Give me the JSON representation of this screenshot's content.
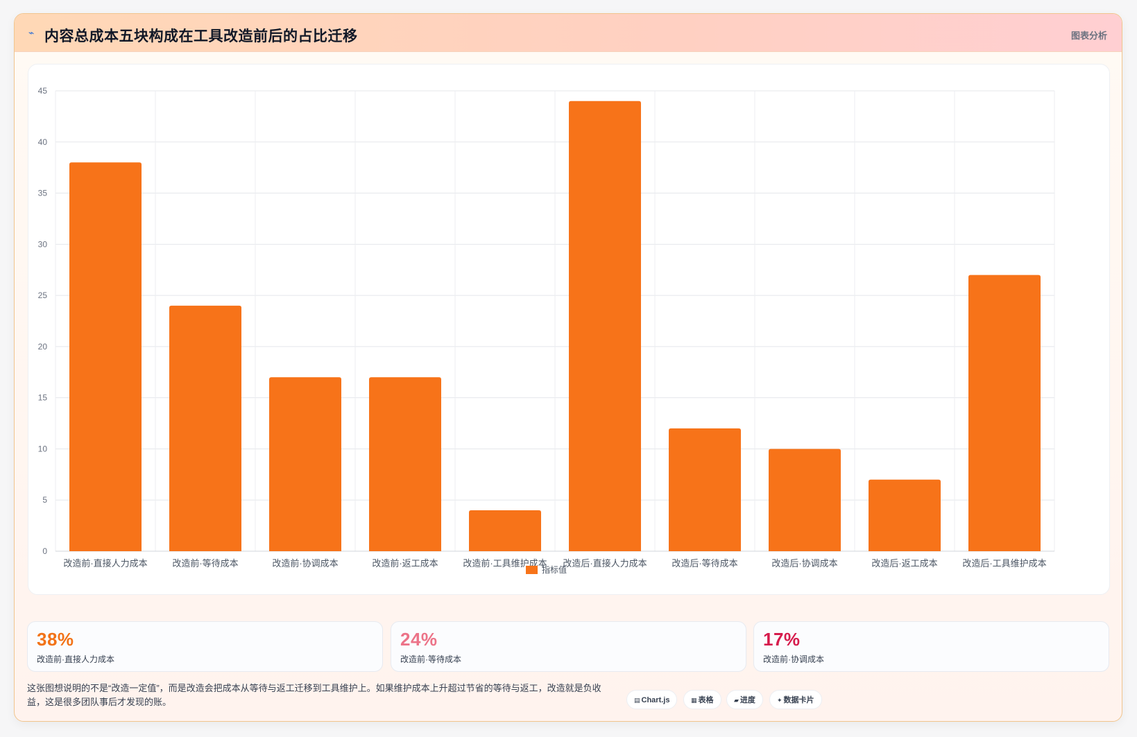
{
  "header": {
    "title": "内容总成本五块构成在工具改造前后的占比迁移",
    "badge": "图表分析"
  },
  "colors": {
    "bar": "#f77319",
    "kpi": [
      "#f27318",
      "#ec7388",
      "#d61b4c"
    ]
  },
  "chart_data": {
    "type": "bar",
    "categories": [
      "改造前·直接人力成本",
      "改造前·等待成本",
      "改造前·协调成本",
      "改造前·返工成本",
      "改造前·工具维护成本",
      "改造后·直接人力成本",
      "改造后·等待成本",
      "改造后·协调成本",
      "改造后·返工成本",
      "改造后·工具维护成本"
    ],
    "series": [
      {
        "name": "指标值",
        "values": [
          38,
          24,
          17,
          17,
          4,
          44,
          12,
          10,
          7,
          27
        ]
      }
    ],
    "ylim": [
      0,
      45
    ],
    "yticks": [
      0,
      5,
      10,
      15,
      20,
      25,
      30,
      35,
      40,
      45
    ],
    "grid": true,
    "legend": "bottom"
  },
  "kpis": [
    {
      "value": "38%",
      "label": "改造前·直接人力成本"
    },
    {
      "value": "24%",
      "label": "改造前·等待成本"
    },
    {
      "value": "17%",
      "label": "改造前·协调成本"
    }
  ],
  "footnote": "这张图想说明的不是“改造一定值”，而是改造会把成本从等待与返工迁移到工具维护上。如果维护成本上升超过节省的等待与返工，改造就是负收益，这是很多团队事后才发现的账。",
  "tags": [
    {
      "icon": "chart-icon",
      "glyph": "▤",
      "label": "Chart.js"
    },
    {
      "icon": "table-icon",
      "glyph": "▦",
      "label": "表格"
    },
    {
      "icon": "progress-icon",
      "glyph": "▰",
      "label": "进度"
    },
    {
      "icon": "card-icon",
      "glyph": "✦",
      "label": "数据卡片"
    }
  ]
}
